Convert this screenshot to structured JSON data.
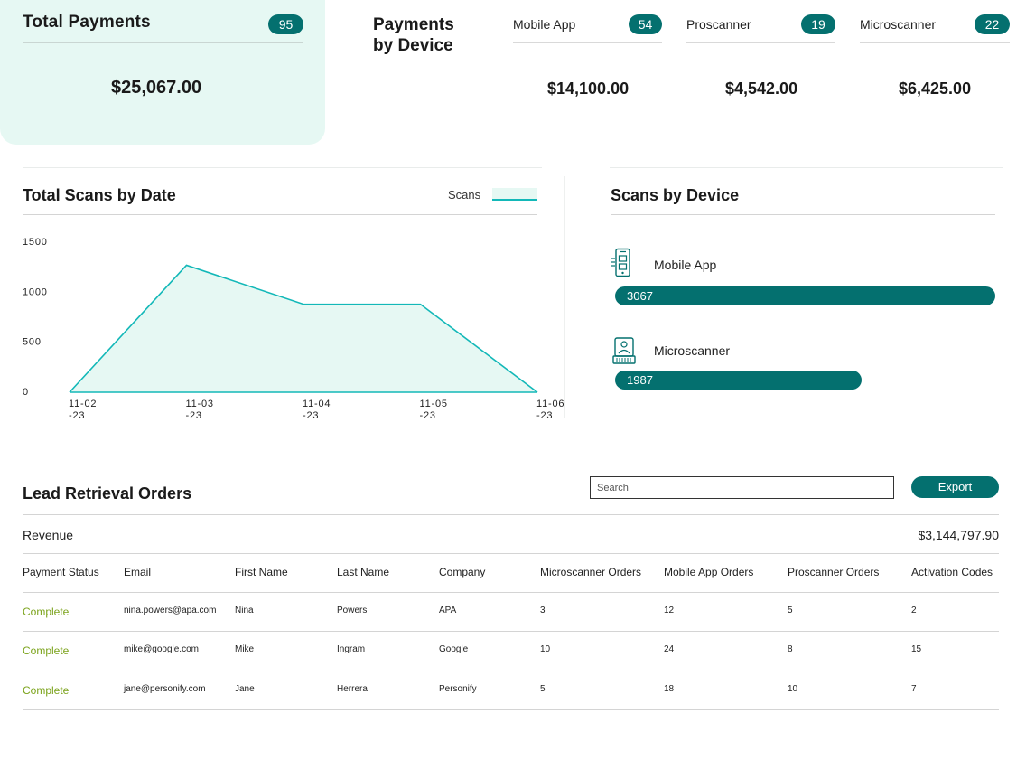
{
  "total_payments": {
    "title": "Total Payments",
    "count": "95",
    "amount": "$25,067.00"
  },
  "payments_by_device": {
    "title_line1": "Payments",
    "title_line2": "by Device",
    "devices": [
      {
        "label": "Mobile App",
        "count": "54",
        "amount": "$14,100.00"
      },
      {
        "label": "Proscanner",
        "count": "19",
        "amount": "$4,542.00"
      },
      {
        "label": "Microscanner",
        "count": "22",
        "amount": "$6,425.00"
      }
    ]
  },
  "scans_by_date": {
    "title": "Total Scans by Date",
    "legend": "Scans",
    "colors": {
      "fill": "#e6f8f3",
      "line": "#13b8b8"
    }
  },
  "chart_data": {
    "type": "area",
    "x_ticks": [
      [
        "11-02",
        "-23"
      ],
      [
        "11-03",
        "-23"
      ],
      [
        "11-04",
        "-23"
      ],
      [
        "11-05",
        "-23"
      ],
      [
        "11-06",
        "-23"
      ]
    ],
    "series": [
      {
        "name": "Scans",
        "values": [
          0,
          1270,
          880,
          880,
          0
        ]
      }
    ],
    "y_ticks": [
      "0",
      "500",
      "1000",
      "1500"
    ],
    "ylim": [
      0,
      1500
    ]
  },
  "scans_by_device": {
    "title": "Scans by Device",
    "max_value": 3067,
    "items": [
      {
        "label": "Mobile App",
        "value": 3067,
        "value_text": "3067",
        "icon": "mobile-app-icon"
      },
      {
        "label": "Microscanner",
        "value": 1987,
        "value_text": "1987",
        "icon": "microscanner-icon"
      }
    ]
  },
  "orders": {
    "title": "Lead Retrieval Orders",
    "search_placeholder": "Search",
    "export_label": "Export",
    "revenue_label": "Revenue",
    "revenue_value": "$3,144,797.90",
    "status_color": "#7ba31b",
    "columns": [
      "Payment Status",
      "Email",
      "First Name",
      "Last Name",
      "Company",
      "Microscanner Orders",
      "Mobile App Orders",
      "Proscanner Orders",
      "Activation Codes"
    ],
    "rows": [
      [
        "Complete",
        "nina.powers@apa.com",
        "Nina",
        "Powers",
        "APA",
        "3",
        "12",
        "5",
        "2"
      ],
      [
        "Complete",
        "mike@google.com",
        "Mike",
        "Ingram",
        "Google",
        "10",
        "24",
        "8",
        "15"
      ],
      [
        "Complete",
        "jane@personify.com",
        "Jane",
        "Herrera",
        "Personify",
        "5",
        "18",
        "10",
        "7"
      ]
    ]
  },
  "brand_color": "#04706f"
}
